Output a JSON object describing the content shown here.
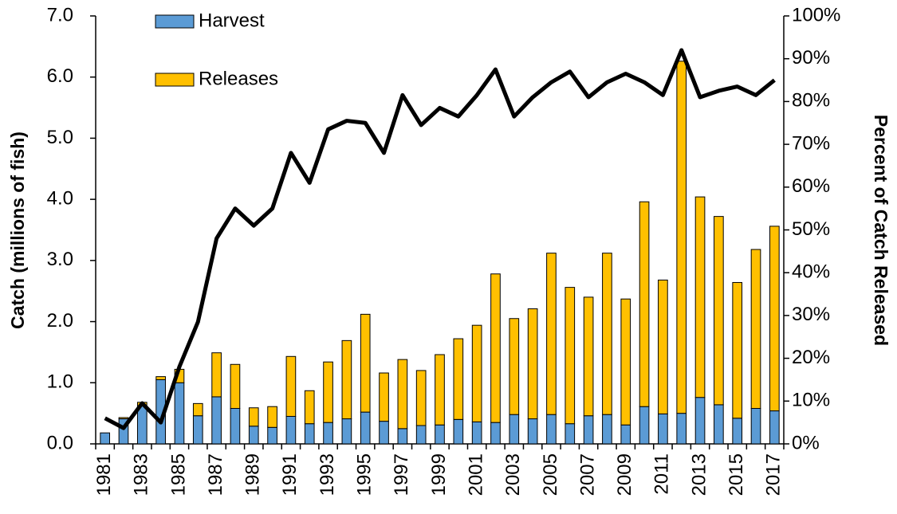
{
  "chart_data": {
    "type": "bar",
    "stacked": true,
    "categories": [
      "1981",
      null,
      "1983",
      null,
      "1985",
      null,
      "1987",
      null,
      "1989",
      null,
      "1991",
      null,
      "1993",
      null,
      "1995",
      null,
      "1997",
      null,
      "1999",
      null,
      "2001",
      null,
      "2003",
      null,
      "2005",
      null,
      "2007",
      null,
      "2009",
      null,
      "2011",
      null,
      "2013",
      null,
      "2015",
      null,
      "2017"
    ],
    "y_label": "Catch (millions of fish)",
    "y2_label": "Percent of Catch Released",
    "ylim": [
      0,
      7
    ],
    "yticks": [
      {
        "value": 0,
        "label": "0.0"
      },
      {
        "value": 1,
        "label": "1.0"
      },
      {
        "value": 2,
        "label": "2.0"
      },
      {
        "value": 3,
        "label": "3.0"
      },
      {
        "value": 4,
        "label": "4.0"
      },
      {
        "value": 5,
        "label": "5.0"
      },
      {
        "value": 6,
        "label": "6.0"
      },
      {
        "value": 7,
        "label": "7.0"
      }
    ],
    "y2lim": [
      0,
      100
    ],
    "y2ticks": [
      {
        "value": 0,
        "label": "0%"
      },
      {
        "value": 10,
        "label": "10%"
      },
      {
        "value": 20,
        "label": "20%"
      },
      {
        "value": 30,
        "label": "30%"
      },
      {
        "value": 40,
        "label": "40%"
      },
      {
        "value": 50,
        "label": "50%"
      },
      {
        "value": 60,
        "label": "60%"
      },
      {
        "value": 70,
        "label": "70%"
      },
      {
        "value": 80,
        "label": "80%"
      },
      {
        "value": 90,
        "label": "90%"
      },
      {
        "value": 100,
        "label": "100%"
      }
    ],
    "legend": "upper-left",
    "series": [
      {
        "name": "Harvest",
        "color": "#5b9bd5",
        "values": [
          0.18,
          0.41,
          0.62,
          1.05,
          1.0,
          0.46,
          0.77,
          0.58,
          0.29,
          0.27,
          0.45,
          0.33,
          0.35,
          0.41,
          0.52,
          0.37,
          0.25,
          0.3,
          0.31,
          0.4,
          0.36,
          0.35,
          0.48,
          0.41,
          0.48,
          0.33,
          0.46,
          0.48,
          0.31,
          0.61,
          0.49,
          0.5,
          0.76,
          0.64,
          0.42,
          0.58,
          0.54
        ]
      },
      {
        "name": "Releases",
        "color": "#ffc000",
        "values": [
          0.0,
          0.02,
          0.06,
          0.05,
          0.22,
          0.2,
          0.72,
          0.72,
          0.3,
          0.34,
          0.98,
          0.54,
          0.99,
          1.28,
          1.6,
          0.79,
          1.13,
          0.9,
          1.15,
          1.32,
          1.58,
          2.43,
          1.57,
          1.8,
          2.64,
          2.23,
          1.94,
          2.64,
          2.06,
          3.35,
          2.19,
          5.76,
          3.28,
          3.08,
          2.22,
          2.6,
          3.02
        ]
      },
      {
        "type": "line",
        "axis": "y2",
        "color": "#000000",
        "values": [
          6,
          3.7,
          9.5,
          5,
          18,
          28.5,
          48,
          55,
          51,
          55,
          68,
          61,
          73.5,
          75.5,
          75,
          68,
          81.5,
          74.5,
          78.5,
          76.5,
          81.5,
          87.5,
          76.5,
          81,
          84.5,
          87,
          81,
          84.5,
          86.5,
          84.5,
          81.5,
          92,
          81,
          82.5,
          83.5,
          81.5,
          85
        ]
      }
    ]
  }
}
